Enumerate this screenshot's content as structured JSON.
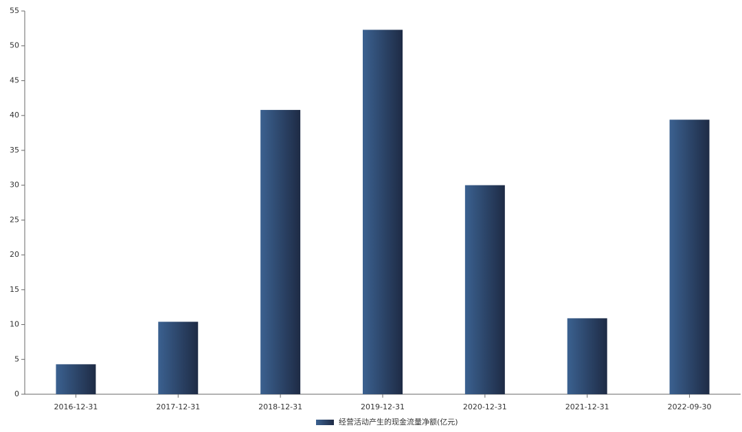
{
  "chart_data": {
    "type": "bar",
    "categories": [
      "2016-12-31",
      "2017-12-31",
      "2018-12-31",
      "2019-12-31",
      "2020-12-31",
      "2021-12-31",
      "2022-09-30"
    ],
    "series": [
      {
        "name": "经营活动产生的现金流量净额(亿元)",
        "color": [
          "#3b6190",
          "#1e2b45"
        ],
        "values": [
          4.3,
          10.4,
          40.8,
          52.3,
          30.0,
          10.9,
          39.4
        ]
      }
    ],
    "ylim": [
      0,
      55
    ],
    "yticks": [
      0,
      5,
      10,
      15,
      20,
      25,
      30,
      35,
      40,
      45,
      50,
      55
    ],
    "grid": false,
    "legend": "bottom"
  }
}
